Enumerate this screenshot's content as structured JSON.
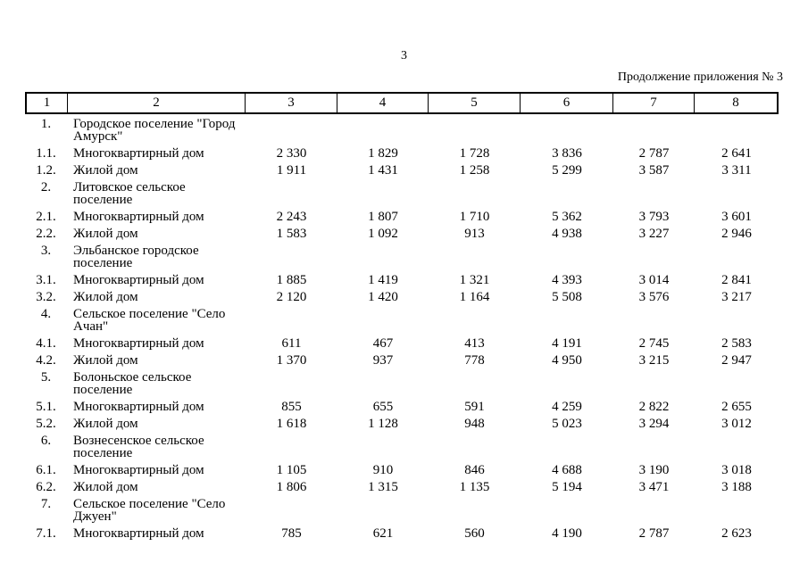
{
  "page": {
    "page_number": "3",
    "continuation_note": "Продолжение приложения № 3"
  },
  "table": {
    "header": [
      "1",
      "2",
      "3",
      "4",
      "5",
      "6",
      "7",
      "8"
    ],
    "rows": [
      {
        "num": "1.",
        "name": "Городское поселение \"Город\nАмурск\"",
        "section": true,
        "values": []
      },
      {
        "num": "1.1.",
        "name": "Многоквартирный дом",
        "section": false,
        "values": [
          "2 330",
          "1 829",
          "1 728",
          "3 836",
          "2 787",
          "2 641"
        ]
      },
      {
        "num": "1.2.",
        "name": "Жилой дом",
        "section": false,
        "values": [
          "1 911",
          "1 431",
          "1 258",
          "5 299",
          "3 587",
          "3 311"
        ]
      },
      {
        "num": "2.",
        "name": "Литовское сельское\nпоселение",
        "section": true,
        "values": []
      },
      {
        "num": "2.1.",
        "name": "Многоквартирный дом",
        "section": false,
        "values": [
          "2 243",
          "1 807",
          "1 710",
          "5 362",
          "3 793",
          "3 601"
        ]
      },
      {
        "num": "2.2.",
        "name": "Жилой дом",
        "section": false,
        "values": [
          "1 583",
          "1 092",
          "913",
          "4 938",
          "3 227",
          "2 946"
        ]
      },
      {
        "num": "3.",
        "name": "Эльбанское городское\nпоселение",
        "section": true,
        "values": []
      },
      {
        "num": "3.1.",
        "name": "Многоквартирный дом",
        "section": false,
        "values": [
          "1 885",
          "1 419",
          "1 321",
          "4 393",
          "3 014",
          "2 841"
        ]
      },
      {
        "num": "3.2.",
        "name": "Жилой дом",
        "section": false,
        "values": [
          "2 120",
          "1 420",
          "1 164",
          "5 508",
          "3 576",
          "3 217"
        ]
      },
      {
        "num": "4.",
        "name": "Сельское поселение \"Село\nАчан\"",
        "section": true,
        "values": []
      },
      {
        "num": "4.1.",
        "name": "Многоквартирный дом",
        "section": false,
        "values": [
          "611",
          "467",
          "413",
          "4 191",
          "2 745",
          "2 583"
        ]
      },
      {
        "num": "4.2.",
        "name": "Жилой дом",
        "section": false,
        "values": [
          "1 370",
          "937",
          "778",
          "4 950",
          "3 215",
          "2 947"
        ]
      },
      {
        "num": "5.",
        "name": "Болоньское сельское\nпоселение",
        "section": true,
        "values": []
      },
      {
        "num": "5.1.",
        "name": "Многоквартирный дом",
        "section": false,
        "values": [
          "855",
          "655",
          "591",
          "4 259",
          "2 822",
          "2 655"
        ]
      },
      {
        "num": "5.2.",
        "name": "Жилой дом",
        "section": false,
        "values": [
          "1 618",
          "1 128",
          "948",
          "5 023",
          "3 294",
          "3 012"
        ]
      },
      {
        "num": "6.",
        "name": "Вознесенское сельское\nпоселение",
        "section": true,
        "values": []
      },
      {
        "num": "6.1.",
        "name": "Многоквартирный дом",
        "section": false,
        "values": [
          "1 105",
          "910",
          "846",
          "4 688",
          "3 190",
          "3 018"
        ]
      },
      {
        "num": "6.2.",
        "name": "Жилой дом",
        "section": false,
        "values": [
          "1 806",
          "1 315",
          "1 135",
          "5 194",
          "3 471",
          "3 188"
        ]
      },
      {
        "num": "7.",
        "name": "Сельское поселение \"Село\nДжуен\"",
        "section": true,
        "values": []
      },
      {
        "num": "7.1.",
        "name": "Многоквартирный дом",
        "section": false,
        "values": [
          "785",
          "621",
          "560",
          "4 190",
          "2 787",
          "2 623"
        ]
      }
    ]
  }
}
